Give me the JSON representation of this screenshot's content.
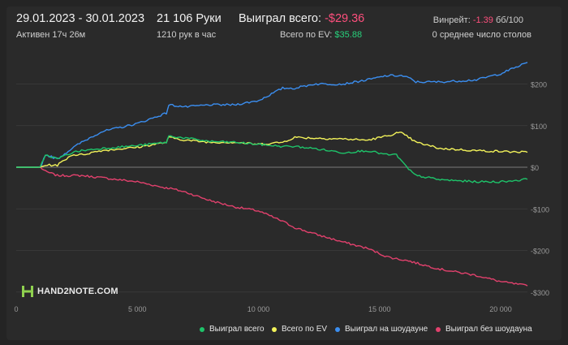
{
  "header": {
    "date_range": "29.01.2023 - 30.01.2023",
    "active_time": "Активен 17ч 26м",
    "hands_count": "21 106 Руки",
    "hands_per_hour": "1210 рук в час",
    "won_total_label": "Выиграл всего:",
    "won_total_value": "-$29.36",
    "ev_total_label": "Всего по EV:",
    "ev_total_value": "$35.88",
    "winrate_label": "Винрейт:",
    "winrate_value": "-1.39",
    "winrate_unit": "бб/100",
    "avg_tables": "0 среднее число столов"
  },
  "logo": {
    "text": "HAND2NOTE.COM"
  },
  "colors": {
    "background": "#242424",
    "panel": "#2a2a2a",
    "won_total": "#1ec46a",
    "ev_total": "#f3f35a",
    "showdown": "#3b8ef0",
    "non_showdown": "#e2416d",
    "negative_text": "#ff4f7d",
    "positive_text": "#27d07b"
  },
  "chart_data": {
    "type": "line",
    "title": "",
    "xlabel": "",
    "ylabel": "",
    "xlim": [
      0,
      21106
    ],
    "ylim": [
      -300,
      260
    ],
    "grid": true,
    "legend_position": "bottom-right",
    "x_ticks": [
      0,
      5000,
      10000,
      15000,
      20000
    ],
    "x_tick_labels": [
      "0",
      "5 000",
      "10 000",
      "15 000",
      "20 000"
    ],
    "y_ticks": [
      200,
      100,
      0,
      -100,
      -200,
      -300
    ],
    "y_tick_labels": [
      "$200",
      "$100",
      "$0",
      "-$100",
      "-$200",
      "-$300"
    ],
    "x": [
      0,
      1000,
      1200,
      1700,
      2300,
      2700,
      3500,
      5000,
      6200,
      6300,
      7000,
      8000,
      9000,
      10000,
      11000,
      11500,
      12300,
      13500,
      14500,
      15300,
      15700,
      15900,
      16200,
      16500,
      17500,
      19000,
      20000,
      21106
    ],
    "series": [
      {
        "name": "Выиграл всего",
        "color": "#1ec46a",
        "values": [
          0,
          0,
          30,
          20,
          35,
          40,
          45,
          52,
          60,
          75,
          70,
          62,
          60,
          55,
          50,
          50,
          45,
          35,
          40,
          30,
          30,
          15,
          -5,
          -20,
          -30,
          -35,
          -35,
          -29
        ]
      },
      {
        "name": "Всего по EV",
        "color": "#f3f35a",
        "values": [
          0,
          0,
          5,
          5,
          30,
          30,
          40,
          48,
          60,
          72,
          65,
          60,
          60,
          55,
          60,
          72,
          70,
          68,
          65,
          75,
          82,
          82,
          72,
          60,
          45,
          40,
          38,
          36
        ]
      },
      {
        "name": "Выиграл на шоудауне",
        "color": "#3b8ef0",
        "values": [
          0,
          0,
          30,
          20,
          45,
          60,
          85,
          105,
          130,
          150,
          145,
          150,
          150,
          160,
          190,
          190,
          200,
          200,
          210,
          220,
          220,
          220,
          215,
          205,
          205,
          210,
          225,
          252
        ]
      },
      {
        "name": "Выиграл без шоудауна",
        "color": "#e2416d",
        "values": [
          0,
          0,
          -10,
          -20,
          -20,
          -20,
          -25,
          -35,
          -50,
          -50,
          -60,
          -80,
          -95,
          -105,
          -130,
          -145,
          -160,
          -180,
          -195,
          -215,
          -220,
          -222,
          -225,
          -230,
          -245,
          -260,
          -275,
          -285
        ]
      }
    ]
  }
}
